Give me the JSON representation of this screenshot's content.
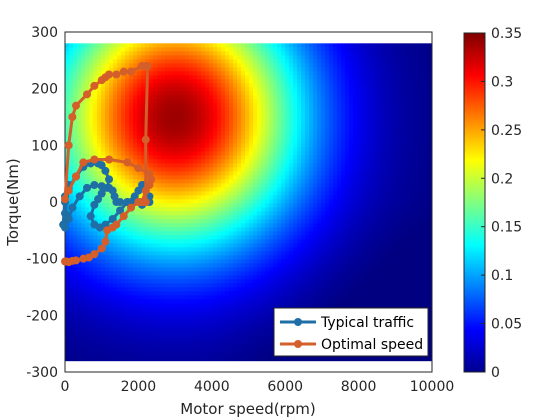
{
  "chart_data": {
    "type": "line",
    "xlabel": "Motor speed(rpm)",
    "ylabel": "Torque(Nm)",
    "xlim": [
      0,
      10000
    ],
    "ylim": [
      -300,
      300
    ],
    "x_ticks": [
      0,
      2000,
      4000,
      6000,
      8000,
      10000
    ],
    "y_ticks": [
      -300,
      -200,
      -100,
      0,
      100,
      200,
      300
    ],
    "x_tick_labels": [
      "0",
      "2000",
      "4000",
      "6000",
      "8000",
      "10000"
    ],
    "y_tick_labels": [
      "-300",
      "-200",
      "-100",
      "0",
      "100",
      "200",
      "300"
    ],
    "grid": false,
    "legend_position": "bottom-right",
    "heatmap": {
      "description_value": "efficiency map background",
      "map_x_range": [
        0,
        10000
      ],
      "map_y_range": [
        -280,
        280
      ],
      "peak_at": [
        3000,
        150
      ],
      "peak_value": 0.34,
      "colormap": "jet"
    },
    "colorbar": {
      "min": 0,
      "max": 0.35,
      "ticks": [
        0,
        0.05,
        0.1,
        0.15,
        0.2,
        0.25,
        0.3,
        0.35
      ],
      "tick_labels": [
        "0",
        "0.05",
        "0.1",
        "0.15",
        "0.2",
        "0.25",
        "0.3",
        "0.35"
      ]
    },
    "series": [
      {
        "name": "Typical traffic",
        "color": "#1f6fa6",
        "x": [
          0,
          100,
          300,
          500,
          700,
          900,
          1000,
          1100,
          1200,
          1150,
          1000,
          900,
          800,
          700,
          800,
          950,
          1100,
          1300,
          1500,
          1700,
          1900,
          2000,
          2100,
          2150,
          2200,
          2300,
          2300,
          2200,
          2100,
          1900,
          1700,
          1500,
          1400,
          1350,
          1300,
          1200,
          1000,
          800,
          600,
          400,
          200,
          100,
          0,
          -50,
          0,
          100,
          0
        ],
        "y": [
          -20,
          25,
          45,
          62,
          68,
          68,
          65,
          55,
          40,
          25,
          15,
          5,
          -5,
          -25,
          -40,
          -45,
          -40,
          -30,
          -15,
          0,
          10,
          20,
          30,
          30,
          20,
          10,
          0,
          0,
          -5,
          0,
          0,
          0,
          0,
          10,
          20,
          25,
          28,
          30,
          25,
          10,
          -10,
          -30,
          -45,
          -40,
          10,
          30,
          0
        ]
      },
      {
        "name": "Optimal speed",
        "color": "#d45f2a",
        "x": [
          0,
          50,
          100,
          200,
          300,
          500,
          650,
          800,
          1000,
          1100,
          1150,
          1300,
          1400,
          1600,
          1800,
          2000,
          2050,
          2100,
          2150,
          2200,
          2200,
          2250,
          2200,
          2100,
          1800,
          1600,
          1400,
          1200,
          1100,
          1000,
          800,
          600,
          300,
          200,
          100,
          0,
          100,
          300,
          500,
          800,
          1200,
          1700,
          2000,
          2300,
          2350,
          2300,
          2200,
          2100
        ],
        "y": [
          -105,
          -105,
          -106,
          -104,
          -103,
          -100,
          -98,
          -92,
          -82,
          -70,
          -50,
          -45,
          -40,
          -25,
          -10,
          0,
          0,
          0,
          0,
          0,
          110,
          240,
          240,
          240,
          230,
          230,
          225,
          225,
          220,
          215,
          205,
          190,
          170,
          150,
          100,
          5,
          20,
          45,
          70,
          75,
          75,
          70,
          60,
          50,
          40,
          30,
          20,
          0
        ]
      }
    ]
  }
}
